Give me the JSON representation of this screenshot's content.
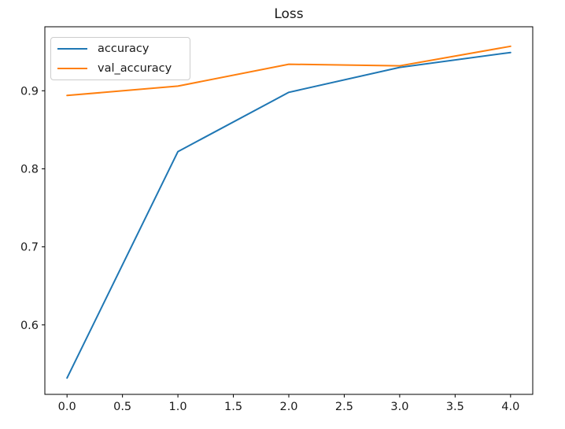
{
  "chart_data": {
    "type": "line",
    "title": "Loss",
    "x": [
      0,
      1,
      2,
      3,
      4
    ],
    "series": [
      {
        "name": "accuracy",
        "color": "#1f77b4",
        "values": [
          0.532,
          0.822,
          0.898,
          0.93,
          0.949
        ]
      },
      {
        "name": "val_accuracy",
        "color": "#ff7f0e",
        "values": [
          0.894,
          0.906,
          0.934,
          0.932,
          0.957
        ]
      }
    ],
    "xlim": [
      -0.2,
      4.2
    ],
    "ylim": [
      0.511,
      0.982
    ],
    "xticks": [
      0.0,
      0.5,
      1.0,
      1.5,
      2.0,
      2.5,
      3.0,
      3.5,
      4.0
    ],
    "xtick_labels": [
      "0.0",
      "0.5",
      "1.0",
      "1.5",
      "2.0",
      "2.5",
      "3.0",
      "3.5",
      "4.0"
    ],
    "yticks": [
      0.6,
      0.7,
      0.8,
      0.9
    ],
    "ytick_labels": [
      "0.6",
      "0.7",
      "0.8",
      "0.9"
    ],
    "xlabel": "",
    "ylabel": "",
    "legend": {
      "position": "upper left",
      "entries": [
        "accuracy",
        "val_accuracy"
      ]
    },
    "grid": false,
    "line_width": 2,
    "colors": {
      "background": "#ffffff",
      "spine": "#000000",
      "tick": "#000000",
      "text": "#1a1a1a"
    }
  }
}
